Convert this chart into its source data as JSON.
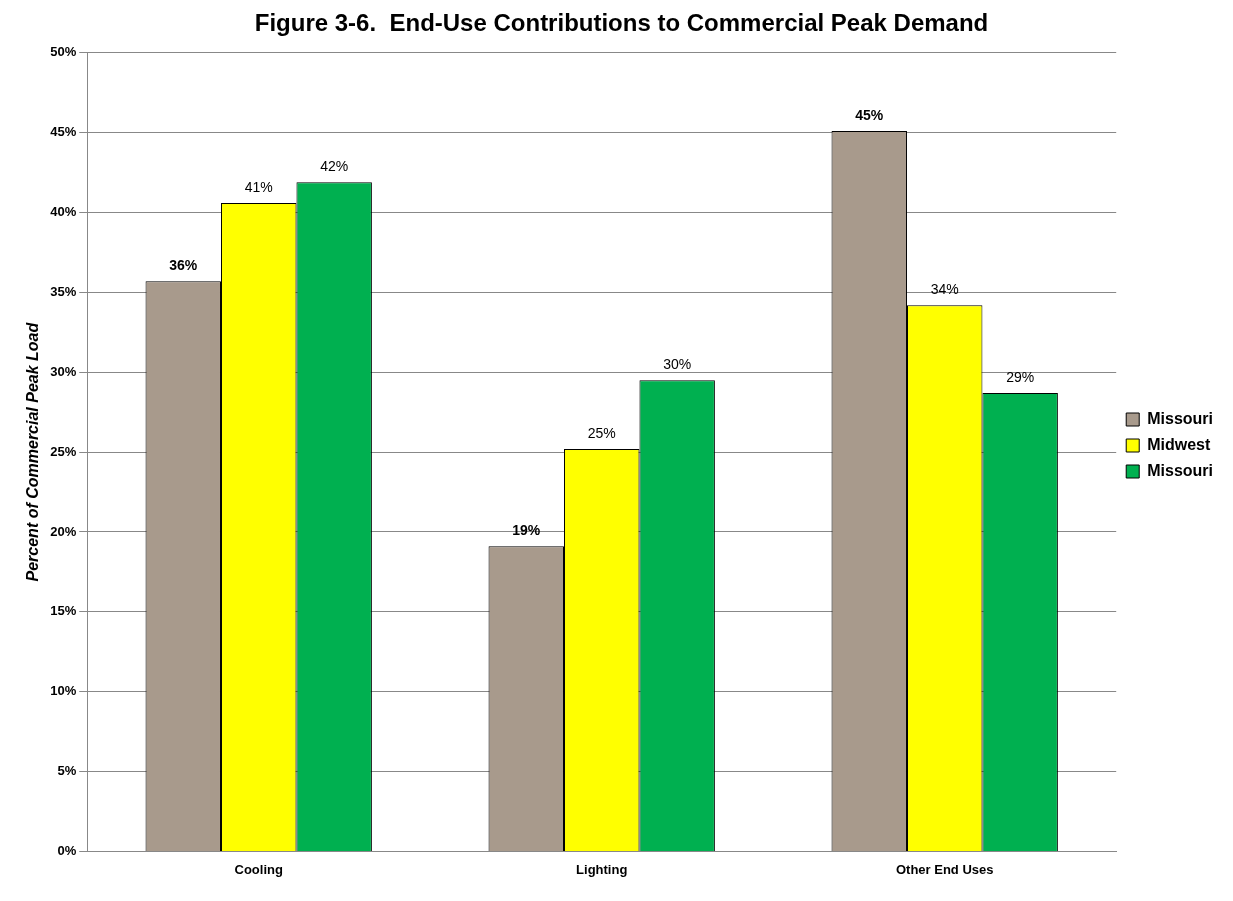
{
  "chart_data": {
    "type": "bar",
    "title": "Figure 3-6.  End-Use Contributions to Commercial Peak Demand",
    "ylabel": "Percent of Commercial Peak Load",
    "categories": [
      "Cooling",
      "Lighting",
      "Other End Uses"
    ],
    "series": [
      {
        "name": "Missouri",
        "color": "#a89a8c",
        "values": [
          35.7,
          19.1,
          45.1
        ],
        "value_labels": [
          "36%",
          "19%",
          "45%"
        ]
      },
      {
        "name": "Midwest",
        "color": "#ffff00",
        "values": [
          40.6,
          25.2,
          34.2
        ],
        "value_labels": [
          "41%",
          "25%",
          "34%"
        ]
      },
      {
        "name": "Missouri",
        "color": "#00b050",
        "values": [
          41.9,
          29.5,
          28.7
        ],
        "value_labels": [
          "42%",
          "30%",
          "29%"
        ]
      }
    ],
    "ylim": [
      0,
      50
    ],
    "yticks": [
      {
        "value": 0,
        "label": "0%"
      },
      {
        "value": 5,
        "label": "5%"
      },
      {
        "value": 10,
        "label": "10%"
      },
      {
        "value": 15,
        "label": "15%"
      },
      {
        "value": 20,
        "label": "20%"
      },
      {
        "value": 25,
        "label": "25%"
      },
      {
        "value": 30,
        "label": "30%"
      },
      {
        "value": 35,
        "label": "35%"
      },
      {
        "value": 40,
        "label": "40%"
      },
      {
        "value": 45,
        "label": "45%"
      },
      {
        "value": 50,
        "label": "50%"
      }
    ],
    "grid": "y",
    "legend": "right"
  }
}
